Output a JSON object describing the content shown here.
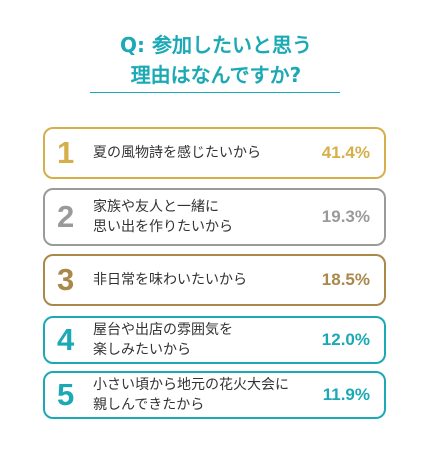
{
  "title_line1": "Q: 参加したいと思う",
  "title_line2": "理由はなんですか?",
  "chart_data": {
    "type": "table",
    "title": "Q: 参加したいと思う 理由はなんですか?",
    "rows": [
      {
        "rank": "1",
        "lines": [
          "夏の風物詩を感じたいから"
        ],
        "value": 41.4,
        "display": "41.4%",
        "color": "#d5b04a"
      },
      {
        "rank": "2",
        "lines": [
          "家族や友人と一緒に",
          "思い出を作りたいから"
        ],
        "value": 19.3,
        "display": "19.3%",
        "color": "#9a9a9a"
      },
      {
        "rank": "3",
        "lines": [
          "非日常を味わいたいから"
        ],
        "value": 18.5,
        "display": "18.5%",
        "color": "#a9884a"
      },
      {
        "rank": "4",
        "lines": [
          "屋台や出店の雰囲気を",
          "楽しみたいから"
        ],
        "value": 12.0,
        "display": "12.0%",
        "color": "#1ba9b5"
      },
      {
        "rank": "5",
        "lines": [
          "小さい頃から地元の花火大会に",
          "親しんできたから"
        ],
        "value": 11.9,
        "display": "11.9%",
        "color": "#1ba9b5"
      }
    ]
  },
  "colors": {
    "accent": "#1ba9b5",
    "gold": "#d5b04a",
    "silver": "#9a9a9a",
    "bronze": "#a9884a"
  }
}
